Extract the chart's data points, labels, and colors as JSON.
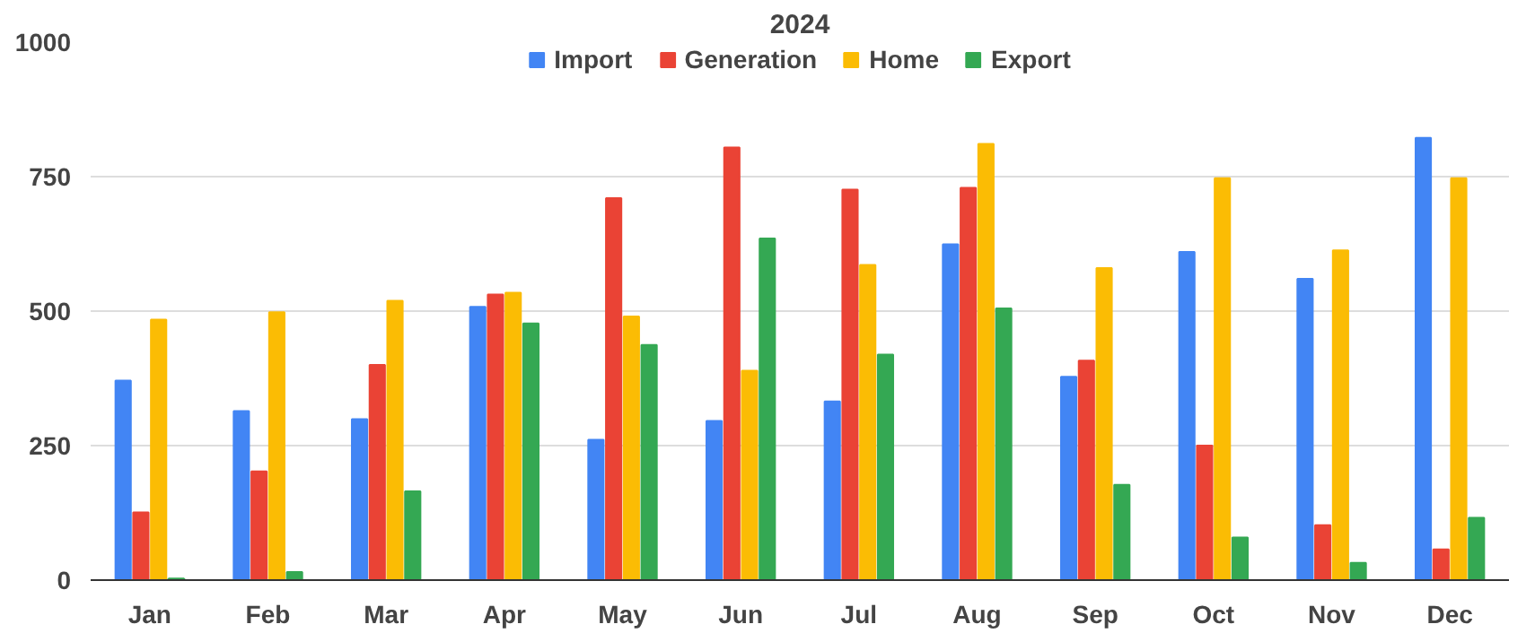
{
  "chart_data": {
    "type": "bar",
    "title": "2024",
    "categories": [
      "Jan",
      "Feb",
      "Mar",
      "Apr",
      "May",
      "Jun",
      "Jul",
      "Aug",
      "Sep",
      "Oct",
      "Nov",
      "Dec"
    ],
    "series": [
      {
        "name": "Import",
        "color": "#4285f4",
        "values": [
          371,
          314,
          299,
          508,
          261,
          296,
          332,
          624,
          378,
          610,
          560,
          822
        ]
      },
      {
        "name": "Generation",
        "color": "#ea4335",
        "values": [
          126,
          202,
          400,
          531,
          710,
          804,
          726,
          729,
          408,
          250,
          102,
          57
        ]
      },
      {
        "name": "Home",
        "color": "#fbbc04",
        "values": [
          484,
          498,
          519,
          534,
          490,
          389,
          586,
          811,
          580,
          747,
          613,
          747
        ]
      },
      {
        "name": "Export",
        "color": "#34a853",
        "values": [
          3,
          15,
          165,
          477,
          437,
          635,
          419,
          505,
          177,
          79,
          32,
          116
        ]
      }
    ],
    "ylim": [
      0,
      1000
    ],
    "yticks": [
      0,
      250,
      500,
      750,
      1000
    ],
    "grid": "y",
    "legend": "top"
  }
}
